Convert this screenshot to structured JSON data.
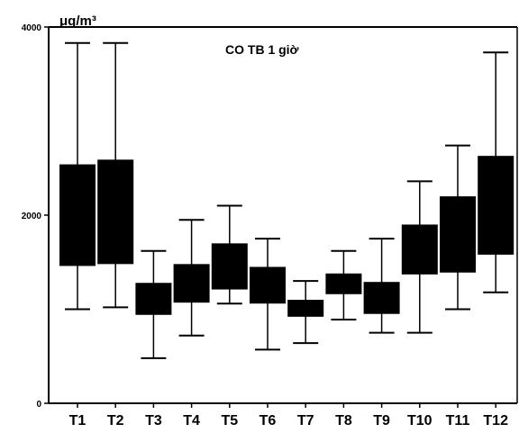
{
  "chart_data": {
    "type": "boxplot",
    "title": "CO TB 1 giờ",
    "unit": "μg/m³",
    "ylim": [
      0,
      4000
    ],
    "yticks": [
      0,
      2000,
      4000
    ],
    "categories": [
      "T1",
      "T2",
      "T3",
      "T4",
      "T5",
      "T6",
      "T7",
      "T8",
      "T9",
      "T10",
      "T11",
      "T12"
    ],
    "boxes": [
      {
        "min": 1000,
        "q1": 1460,
        "q3": 2540,
        "max": 3830
      },
      {
        "min": 1020,
        "q1": 1480,
        "q3": 2590,
        "max": 3830
      },
      {
        "min": 480,
        "q1": 940,
        "q3": 1280,
        "max": 1620
      },
      {
        "min": 720,
        "q1": 1070,
        "q3": 1480,
        "max": 1950
      },
      {
        "min": 1060,
        "q1": 1210,
        "q3": 1700,
        "max": 2100
      },
      {
        "min": 570,
        "q1": 1060,
        "q3": 1450,
        "max": 1750
      },
      {
        "min": 640,
        "q1": 920,
        "q3": 1100,
        "max": 1300
      },
      {
        "min": 890,
        "q1": 1160,
        "q3": 1380,
        "max": 1620
      },
      {
        "min": 750,
        "q1": 950,
        "q3": 1290,
        "max": 1750
      },
      {
        "min": 750,
        "q1": 1370,
        "q3": 1900,
        "max": 2360
      },
      {
        "min": 1000,
        "q1": 1390,
        "q3": 2200,
        "max": 2740
      },
      {
        "min": 1180,
        "q1": 1580,
        "q3": 2630,
        "max": 3730
      }
    ],
    "grid": false,
    "legend": "none"
  }
}
